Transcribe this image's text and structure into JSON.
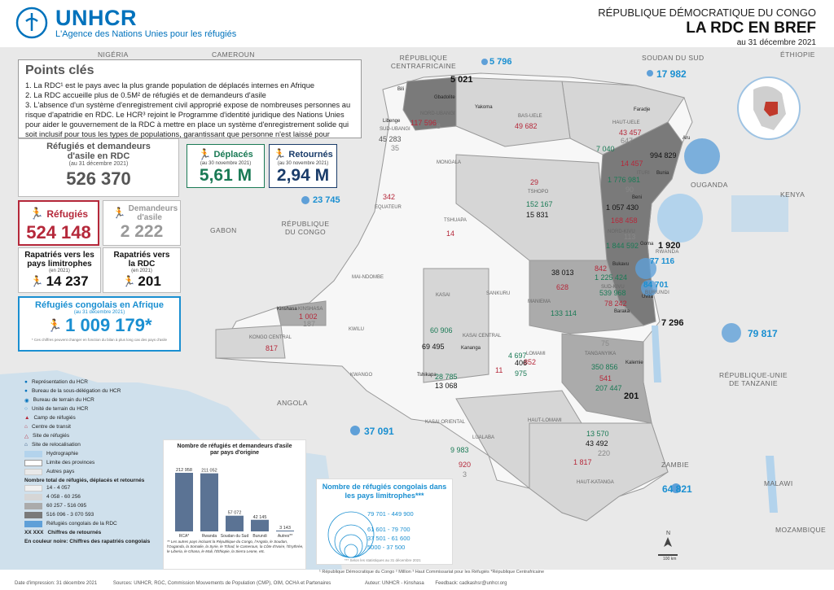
{
  "header": {
    "country": "RÉPUBLIQUE DÉMOCRATIQUE DU CONGO",
    "title": "LA RDC EN BREF",
    "date": "au 31 décembre 2021"
  },
  "logo": {
    "name": "UNHCR",
    "tagline": "L'Agence des Nations Unies pour les réfugiés"
  },
  "key_points": {
    "title": "Points clés",
    "items": [
      "1. La RDC¹ est le pays avec la plus grande population de déplacés internes en Afrique",
      "2. La RDC accueille plus de 0.5M² de réfugiés et de demandeurs d'asile",
      "3. L'absence d'un système d'enregistrement civil approprié expose de nombreuses personnes au risque d'apatridie en RDC. Le HCR³ rejoint le Programme d'identité juridique des Nations Unies pour aider le gouvernement de la RDC à mettre en place un système d'enregistrement solide qui soit inclusif pour tous les types de populations, garantissant que personne n'est laissé pour compte."
    ]
  },
  "stats": {
    "refugees_asylum": {
      "title": "Réfugiés et demandeurs d'asile en RDC",
      "date": "(au 31 décembre 2021)",
      "value": "526 370"
    },
    "refugees": {
      "label": "Réfugiés",
      "value": "524 148"
    },
    "asylum_seekers": {
      "label": "Demandeurs d'asile",
      "value": "2 222"
    },
    "repatriated_neighbors": {
      "label": "Rapatriés vers les pays limitrophes",
      "date": "(en 2021)",
      "value": "14 237"
    },
    "repatriated_rdc": {
      "label": "Rapatriés vers la RDC",
      "date": "(en 2021)",
      "value": "201"
    },
    "displaced": {
      "label": "Déplacés",
      "date": "(au 30 novembre 2021)",
      "value": "5,61 M"
    },
    "returnees": {
      "label": "Retournés",
      "date": "(au 30 novembre 2021)",
      "value": "2,94 M"
    },
    "congolese_africa": {
      "title": "Réfugiés congolais en Afrique",
      "date": "(au 31 décembre 2021)",
      "value": "1 009 179*",
      "note": "* Ces chiffres peuvent changer en fonction du bilan à plus long cas des pays d'asile"
    }
  },
  "countries": [
    "NIGÉRIA",
    "CAMEROUN",
    "RÉPUBLIQUE CENTRAFRICAINE",
    "SOUDAN DU SUD",
    "ÉTHIOPIE",
    "OUGANDA",
    "KENYA",
    "GABON",
    "RÉPUBLIQUE DU CONGO",
    "RWANDA",
    "BURUNDI",
    "ANGOLA",
    "RÉPUBLIQUE-UNIE DE TANZANIE",
    "ZAMBIE",
    "MALAWI",
    "MOZAMBIQUE"
  ],
  "provinces": [
    "NORD-UBANGI",
    "SUD-UBANGI",
    "BAS-UELE",
    "HAUT-UELE",
    "MONGALA",
    "ITURI",
    "TSHOPO",
    "EQUATEUR",
    "TSHUAPA",
    "NORD-KIVU",
    "SUD-KIVU",
    "MANIEMA",
    "MAI-NDOMBE",
    "KASAI",
    "SANKURU",
    "KINSHASA",
    "KWILU",
    "KASAI CENTRAL",
    "KONGO CENTRAL",
    "KWANGO",
    "LOMAMI",
    "TANGANYIKA",
    "KASAI ORIENTAL",
    "HAUT-LOMAMI",
    "LUALABA",
    "HAUT-KATANGA"
  ],
  "map_values": {
    "border_blue": [
      "5 796",
      "17 982",
      "23 745",
      "64 821",
      "37 091",
      "79 817",
      "84 701",
      "77 116"
    ],
    "red": [
      "43 457",
      "14 457",
      "168 458",
      "842",
      "78 242",
      "541",
      "1 002",
      "817",
      "628",
      "852",
      "11",
      "1 817",
      "29",
      "342",
      "14",
      "117 596",
      "49 682"
    ],
    "green": [
      "7 040",
      "1 776 981",
      "1 844 592",
      "1 225 424",
      "539 968",
      "133 114",
      "60 906",
      "4 697",
      "28 785",
      "350 856",
      "207 447",
      "13 570",
      "9 983",
      "975",
      "152 167"
    ],
    "black": [
      "5 021",
      "994 829",
      "1 057 430",
      "1 920",
      "7 296",
      "201",
      "38 013",
      "15 831",
      "69 495",
      "13 068",
      "406",
      "43 492"
    ],
    "gray": [
      "45 283",
      "35",
      "8",
      "647",
      "90",
      "113",
      "75",
      "187",
      "220",
      "920",
      "3"
    ]
  },
  "cities": [
    "Gbadolite",
    "Libenge",
    "Bili",
    "Yakoma",
    "Faradje",
    "Aru",
    "Bunia",
    "Beni",
    "Goma",
    "Bukavu",
    "Uvira",
    "Baraka",
    "Kalemie",
    "Kinshasa",
    "Kananga",
    "Tshikapa"
  ],
  "chart_data": {
    "type": "bar",
    "title": "Nombre de réfugiés et demandeurs d'asile par pays d'origine",
    "categories": [
      "RCA*",
      "Rwanda",
      "Soudan du Sud",
      "Burundi",
      "Autres**"
    ],
    "values": [
      212958,
      211052,
      57072,
      42145,
      3143
    ],
    "value_labels": [
      "212 958",
      "211 052",
      "57 072",
      "42 145",
      "3 143"
    ],
    "note": "** Les autres pays incluant la République du Congo, l'Angola, le Soudan, l'Ouganda, la Somalie, la Syrie, le Tchad, le Cameroun, la Côte d'Ivoire, l'Érythrée, le Liberia, le Ghana, le Mali, l'Éthiopie, la Sierra Leone, etc."
  },
  "legend": {
    "items": [
      "Représentation du HCR",
      "Bureau de la sous-délégation du HCR",
      "Bureau de terrain du HCR",
      "Unité de terrain du HCR",
      "Camp de réfugiés",
      "Centre de transit",
      "Site de réfugiés",
      "Site de relocalisation"
    ],
    "area_items": [
      "Hydrographie",
      "Limite des provinces",
      "Autres pays"
    ],
    "total_title": "Nombre total de réfugiés, déplacés et retournés",
    "ranges": [
      "14 - 4 057",
      "4 058 - 60 256",
      "60 257 - 516 095",
      "516 096 - 3 070 593"
    ],
    "ranges_colors": [
      "#f1f1f1",
      "#d6d6d6",
      "#ababab",
      "#7a7a7a"
    ],
    "congolese_label": "Réfugiés congolais de la RDC",
    "xx_label": "XX XXX",
    "xx_text": "Chiffres de retournés",
    "black_text": "En couleur noire: Chiffres des rapatriés congolais"
  },
  "bubble_legend": {
    "title": "Nombre de réfugiés congolais dans les pays limitrophes***",
    "ranges": [
      "79 701 - 449 900",
      "61 601 - 79 700",
      "37 501 - 61 600",
      "5000 - 37 500"
    ],
    "note": "*** Selon les statistiques au 31 décembre 2021"
  },
  "footnotes": "¹ République Démocratique du Congo  ² Million  ³ Haut Commissariat pour les Réfugiés  *République Centrafricaine",
  "footer": {
    "date": "Date d'impression: 31 décembre 2021",
    "sources": "Sources: UNHCR, RGC, Commission Mouvements de Population (CMP), OIM, OCHA et Partenaires",
    "author": "Auteur: UNHCR - Kinshasa",
    "feedback": "Feedback: cadkashsr@unhcr.org"
  },
  "scale": "100 km",
  "colors": {
    "unhcr_blue": "#0072bc",
    "green": "#1a7a55",
    "red": "#b5283a",
    "water": "#b3d3ec",
    "bubble": "#5fa0d8"
  }
}
